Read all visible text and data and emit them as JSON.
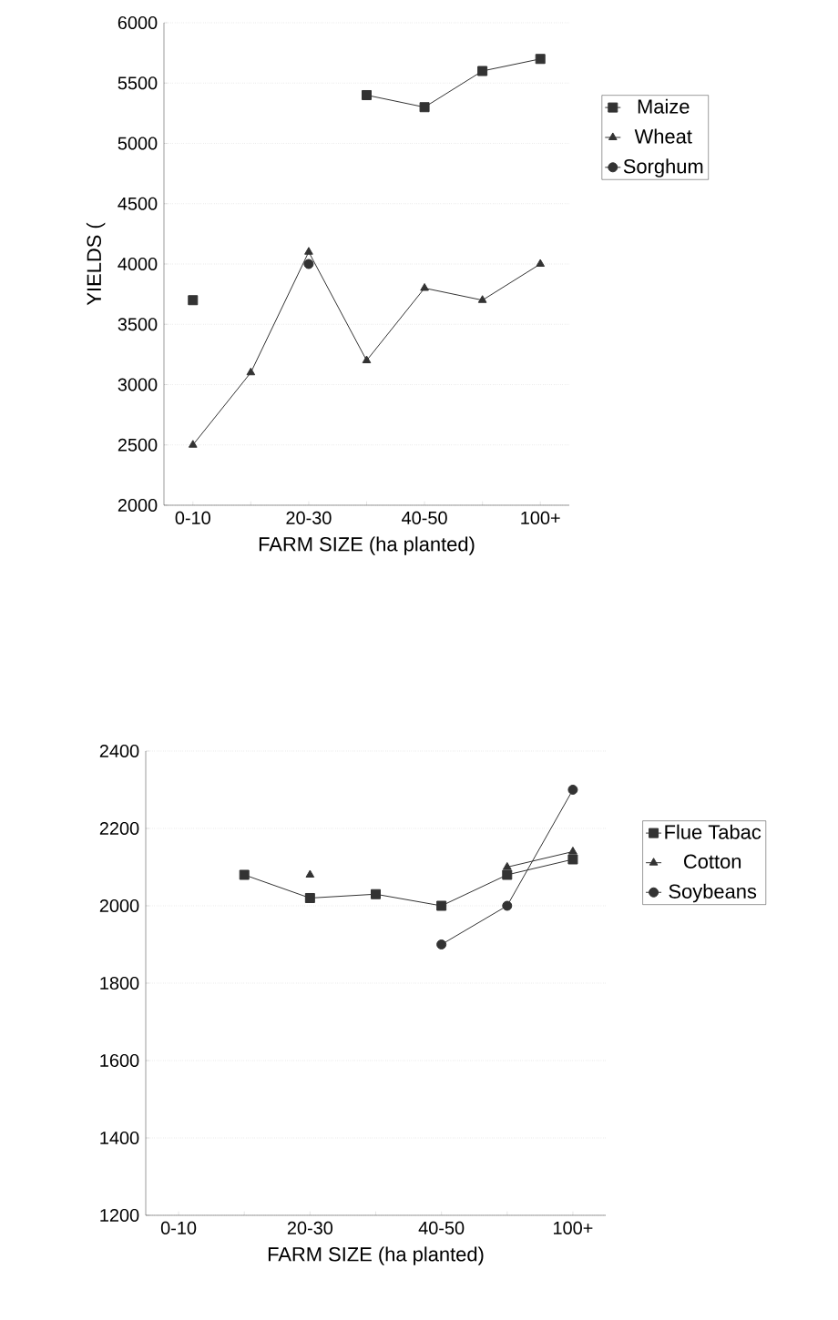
{
  "chart_data": [
    {
      "type": "line",
      "xlabel": "FARM SIZE (ha planted)",
      "ylabel": "YIELDS (",
      "categories": [
        "0-10",
        null,
        "20-30",
        null,
        "40-50",
        null,
        "100+"
      ],
      "ylim": [
        2000,
        6000
      ],
      "yticks": [
        2000,
        2500,
        3000,
        3500,
        4000,
        4500,
        5000,
        5500,
        6000
      ],
      "grid": "y",
      "legend": "right",
      "line_style": "solid",
      "series": [
        {
          "name": "Maize",
          "color": "#333333",
          "marker": "square",
          "values": [
            3700,
            null,
            null,
            5400,
            5300,
            5600,
            5700
          ]
        },
        {
          "name": "Wheat",
          "color": "#333333",
          "marker": "triangle",
          "values": [
            2500,
            3100,
            4100,
            3200,
            3800,
            3700,
            4000
          ]
        },
        {
          "name": "Sorghum",
          "color": "#333333",
          "marker": "circle",
          "values": [
            null,
            null,
            4000,
            null,
            null,
            null,
            null
          ]
        }
      ]
    },
    {
      "type": "line",
      "xlabel": "FARM SIZE (ha planted)",
      "categories": [
        "0-10",
        null,
        "20-30",
        null,
        "40-50",
        null,
        "100+"
      ],
      "ylim": [
        1200,
        2400
      ],
      "yticks": [
        1200,
        1400,
        1600,
        1800,
        2000,
        2200,
        2400
      ],
      "grid": "y",
      "legend": "right",
      "line_style": "solid",
      "series": [
        {
          "name": "Flue Tabac",
          "color": "#333333",
          "marker": "square",
          "values": [
            null,
            2080,
            2020,
            2030,
            2000,
            2080,
            2120
          ]
        },
        {
          "name": "Cotton",
          "color": "#333333",
          "marker": "triangle",
          "values": [
            null,
            null,
            2080,
            null,
            null,
            2100,
            2140
          ]
        },
        {
          "name": "Soybeans",
          "color": "#333333",
          "marker": "circle",
          "values": [
            null,
            null,
            null,
            null,
            1900,
            2000,
            2300
          ]
        }
      ]
    }
  ]
}
